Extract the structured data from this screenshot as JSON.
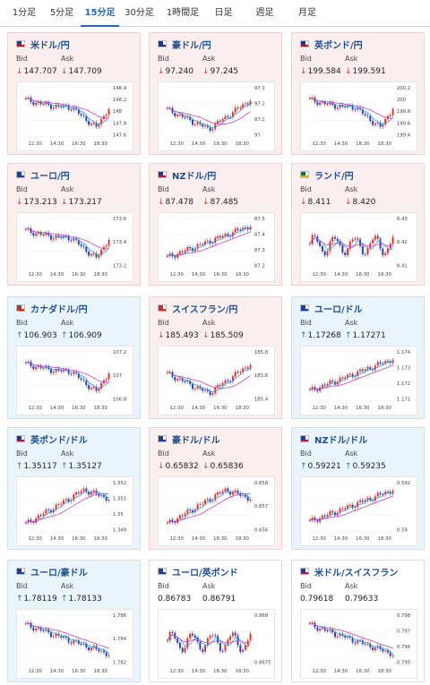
{
  "tabs": [
    {
      "label": "1分足",
      "active": false
    },
    {
      "label": "5分足",
      "active": false
    },
    {
      "label": "15分足",
      "active": true
    },
    {
      "label": "30分足",
      "active": false
    },
    {
      "label": "1時間足",
      "active": false
    },
    {
      "label": "日足",
      "active": false
    },
    {
      "label": "週足",
      "active": false
    },
    {
      "label": "月足",
      "active": false
    }
  ],
  "labels": {
    "bid": "Bid",
    "ask": "Ask"
  },
  "colors": {
    "down": "#d23a3a",
    "up": "#1f8a46",
    "candle_up": "#e03030",
    "candle_down": "#2a3fb8",
    "ma_short": "#2aa7d8",
    "ma_long": "#c23ac8"
  },
  "x_ticks": [
    "12:30",
    "14:30",
    "16:30",
    "18:30"
  ],
  "cards": [
    {
      "pair": "米ドル/円",
      "flag": "us",
      "trend": "down",
      "bid": "147.707",
      "ask": "147.709",
      "y_ticks": [
        "148.4",
        "148.2",
        "148",
        "147.8",
        "147.6"
      ],
      "shape": "downtrend_recover"
    },
    {
      "pair": "豪ドル/円",
      "flag": "au",
      "trend": "down",
      "bid": "97.240",
      "ask": "97.245",
      "y_ticks": [
        "97.3",
        "97.2",
        "97.1",
        "97"
      ],
      "shape": "vshape"
    },
    {
      "pair": "英ポンド/円",
      "flag": "gb",
      "trend": "down",
      "bid": "199.584",
      "ask": "199.591",
      "y_ticks": [
        "200.2",
        "200",
        "199.8",
        "199.6",
        "199.4"
      ],
      "shape": "downtrend_recover"
    },
    {
      "pair": "ユーロ/円",
      "flag": "eu",
      "trend": "down",
      "bid": "173.213",
      "ask": "173.217",
      "y_ticks": [
        "173.6",
        "173.4",
        "173.2"
      ],
      "shape": "downtrend_recover"
    },
    {
      "pair": "NZドル/円",
      "flag": "nz",
      "trend": "down",
      "bid": "87.478",
      "ask": "87.485",
      "y_ticks": [
        "87.5",
        "87.4",
        "87.3",
        "87.2"
      ],
      "shape": "uptrend"
    },
    {
      "pair": "ランド/円",
      "flag": "za",
      "trend": "down",
      "bid": "8.411",
      "ask": "8.420",
      "y_ticks": [
        "8.43",
        "8.42",
        "8.41"
      ],
      "shape": "choppy"
    },
    {
      "pair": "カナダドル/円",
      "flag": "ca",
      "trend": "up",
      "bid": "106.903",
      "ask": "106.909",
      "y_ticks": [
        "107.2",
        "107",
        "106.8"
      ],
      "shape": "downtrend_recover"
    },
    {
      "pair": "スイスフラン/円",
      "flag": "ch",
      "trend": "down",
      "bid": "185.493",
      "ask": "185.509",
      "y_ticks": [
        "185.8",
        "185.6",
        "185.4"
      ],
      "shape": "vshape"
    },
    {
      "pair": "ユーロ/ドル",
      "flag": "eu",
      "trend": "up",
      "bid": "1.17268",
      "ask": "1.17271",
      "y_ticks": [
        "1.174",
        "1.173",
        "1.172",
        "1.171"
      ],
      "shape": "uptrend"
    },
    {
      "pair": "英ポンド/ドル",
      "flag": "gb",
      "trend": "up",
      "bid": "1.35117",
      "ask": "1.35127",
      "y_ticks": [
        "1.352",
        "1.351",
        "1.35",
        "1.349"
      ],
      "shape": "uptrend_peak"
    },
    {
      "pair": "豪ドル/ドル",
      "flag": "au",
      "trend": "down",
      "bid": "0.65832",
      "ask": "0.65836",
      "y_ticks": [
        "0.658",
        "0.657",
        "0.656"
      ],
      "shape": "uptrend_peak"
    },
    {
      "pair": "NZドル/ドル",
      "flag": "nz",
      "trend": "up",
      "bid": "0.59221",
      "ask": "0.59235",
      "y_ticks": [
        "0.592",
        "0.59"
      ],
      "shape": "uptrend"
    },
    {
      "pair": "ユーロ/豪ドル",
      "flag": "eu",
      "trend": "up",
      "bid": "1.78119",
      "ask": "1.78133",
      "y_ticks": [
        "1.786",
        "1.784",
        "1.782"
      ],
      "shape": "downtrend"
    },
    {
      "pair": "ユーロ/英ポンド",
      "flag": "eu",
      "trend": "flat",
      "bid": "0.86783",
      "ask": "0.86791",
      "y_ticks": [
        "0.868",
        "0.8675"
      ],
      "shape": "choppy"
    },
    {
      "pair": "米ドル/スイスフラン",
      "flag": "us",
      "trend": "flat",
      "bid": "0.79618",
      "ask": "0.79633",
      "y_ticks": [
        "0.798",
        "0.797",
        "0.796",
        "0.795"
      ],
      "shape": "downtrend"
    }
  ]
}
